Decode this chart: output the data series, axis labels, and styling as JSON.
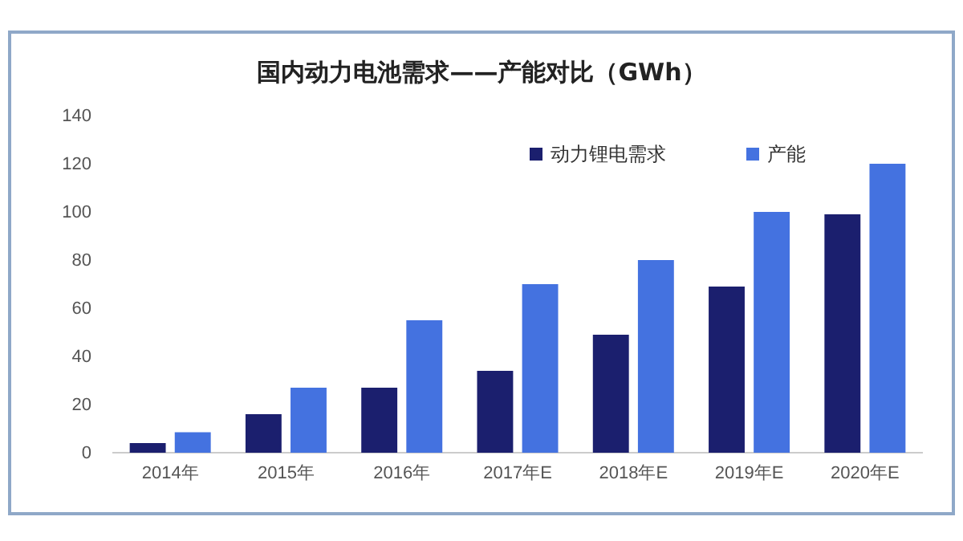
{
  "chart_data": {
    "type": "bar",
    "title": "国内动力电池需求——产能对比（GWh）",
    "categories": [
      "2014年",
      "2015年",
      "2016年",
      "2017年E",
      "2018年E",
      "2019年E",
      "2020年E"
    ],
    "series": [
      {
        "name": "动力锂电需求",
        "color": "#1b1f6e",
        "values": [
          4,
          16,
          27,
          34,
          49,
          69,
          99
        ]
      },
      {
        "name": "产能",
        "color": "#4472e0",
        "values": [
          8.5,
          27,
          55,
          70,
          80,
          100,
          120
        ]
      }
    ],
    "ylim": [
      0,
      140
    ],
    "yticks": [
      0,
      20,
      40,
      60,
      80,
      100,
      120,
      140
    ],
    "grid": false,
    "legend": "top right"
  }
}
